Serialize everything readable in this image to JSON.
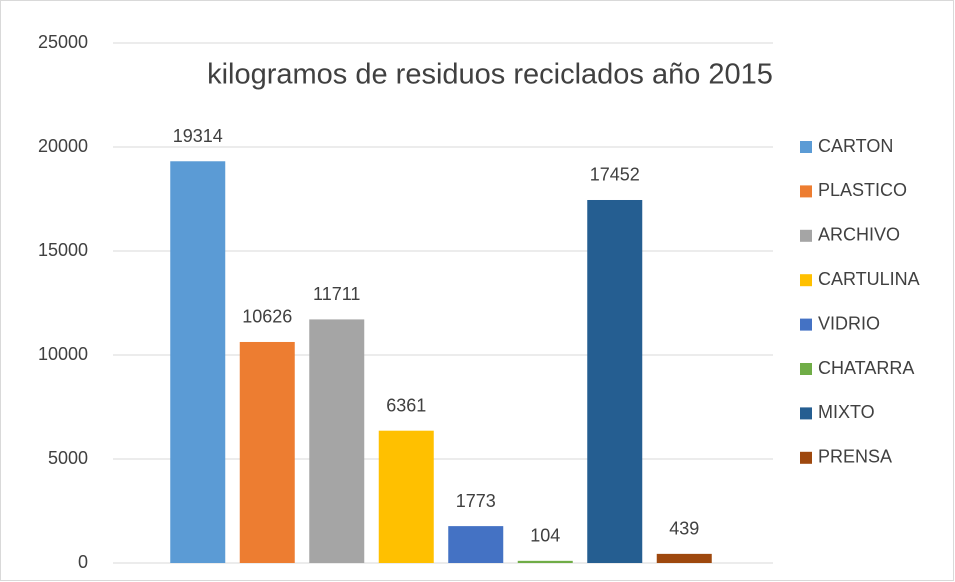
{
  "chart_data": {
    "type": "bar",
    "title": "kilogramos de residuos reciclados año 2015",
    "series": [
      {
        "name": "CARTON",
        "color": "#5b9bd5",
        "values": [
          19314
        ]
      },
      {
        "name": "PLASTICO",
        "color": "#ed7d31",
        "values": [
          10626
        ]
      },
      {
        "name": "ARCHIVO",
        "color": "#a5a5a5",
        "values": [
          11711
        ]
      },
      {
        "name": "CARTULINA",
        "color": "#ffc000",
        "values": [
          6361
        ]
      },
      {
        "name": "VIDRIO",
        "color": "#4472c4",
        "values": [
          1773
        ]
      },
      {
        "name": "CHATARRA",
        "color": "#70ad47",
        "values": [
          104
        ]
      },
      {
        "name": "MIXTO",
        "color": "#255e91",
        "values": [
          17452
        ]
      },
      {
        "name": "PRENSA",
        "color": "#9e480e",
        "values": [
          439
        ]
      }
    ],
    "ylim": [
      0,
      25000
    ],
    "yticks": [
      0,
      5000,
      10000,
      15000,
      20000,
      25000
    ],
    "grid": true,
    "legend": "right"
  }
}
